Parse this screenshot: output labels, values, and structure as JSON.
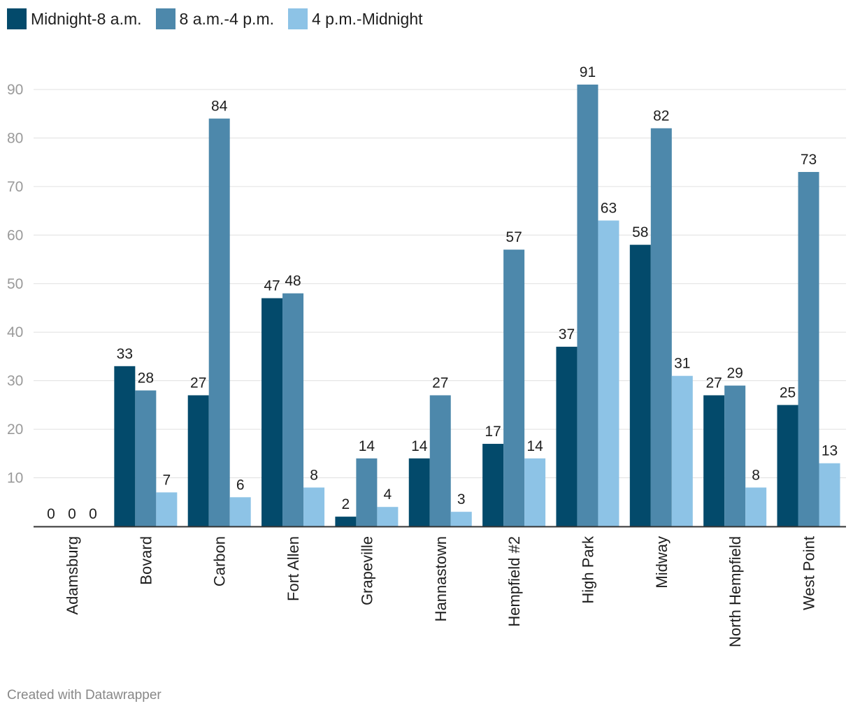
{
  "legend": [
    {
      "label": "Midnight-8 a.m.",
      "color": "#034a6b"
    },
    {
      "label": "8 a.m.-4 p.m.",
      "color": "#4d88ab"
    },
    {
      "label": "4 p.m.-Midnight",
      "color": "#8dc3e6"
    }
  ],
  "footer": "Created with Datawrapper",
  "chart_data": {
    "type": "bar",
    "title": "",
    "xlabel": "",
    "ylabel": "",
    "ylim": [
      0,
      90
    ],
    "yticks": [
      10,
      20,
      30,
      40,
      50,
      60,
      70,
      80,
      90
    ],
    "grid": true,
    "legend_position": "top-left",
    "categories": [
      "Adamsburg",
      "Bovard",
      "Carbon",
      "Fort Allen",
      "Grapeville",
      "Hannastown",
      "Hempfield #2",
      "High Park",
      "Midway",
      "North Hempfield",
      "West Point"
    ],
    "series": [
      {
        "name": "Midnight-8 a.m.",
        "color": "#034a6b",
        "values": [
          0,
          33,
          27,
          47,
          2,
          14,
          17,
          37,
          58,
          27,
          25
        ]
      },
      {
        "name": "8 a.m.-4 p.m.",
        "color": "#4d88ab",
        "values": [
          0,
          28,
          84,
          48,
          14,
          27,
          57,
          91,
          82,
          29,
          73
        ]
      },
      {
        "name": "4 p.m.-Midnight",
        "color": "#8dc3e6",
        "values": [
          0,
          7,
          6,
          8,
          4,
          3,
          14,
          63,
          31,
          8,
          13
        ]
      }
    ]
  }
}
